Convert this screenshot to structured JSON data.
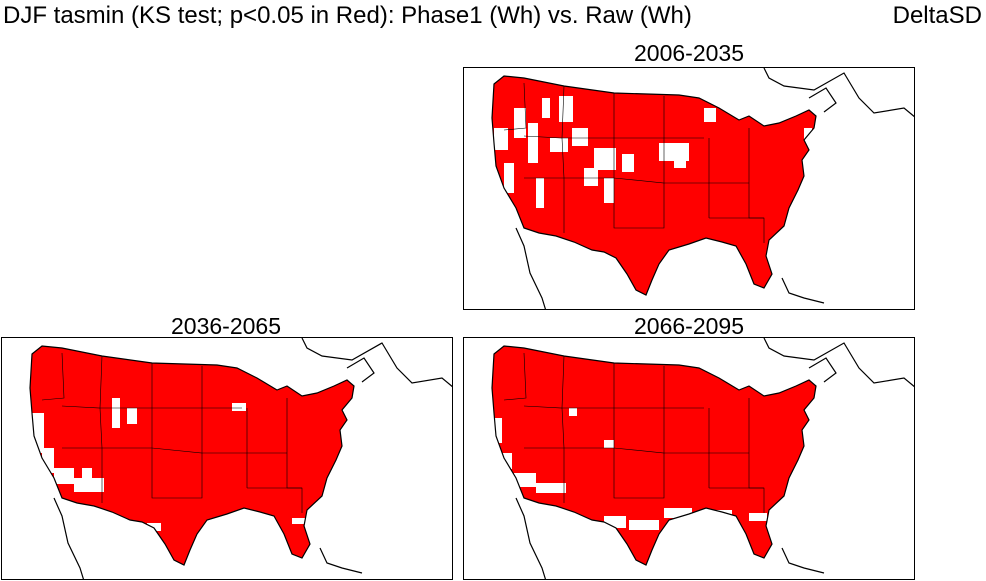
{
  "header": {
    "title": "DJF  tasmin (KS test; p<0.05 in Red): Phase1 (Wh) vs. Raw (Wh)",
    "method": "DeltaSD"
  },
  "colors": {
    "significant": "#ff0000",
    "not_significant": "#ffffff",
    "coastline": "#000000"
  },
  "legend_note": "p<0.05 in Red",
  "panels": [
    {
      "id": "p1",
      "period": "2006-2035"
    },
    {
      "id": "p2",
      "period": "2036-2065"
    },
    {
      "id": "p3",
      "period": "2066-2095"
    }
  ]
}
